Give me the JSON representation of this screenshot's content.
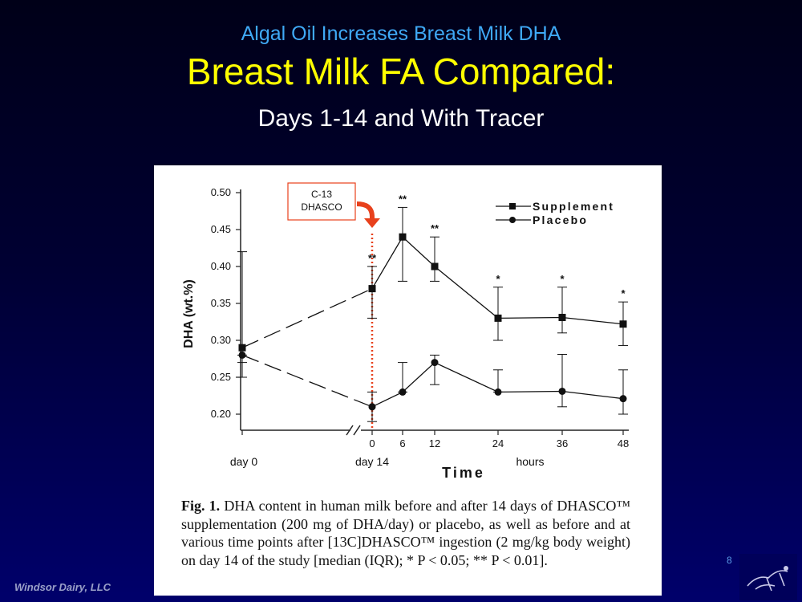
{
  "slide": {
    "kicker": "Algal Oil Increases Breast Milk DHA",
    "title": "Breast Milk FA Compared:",
    "subtitle": "Days 1-14 and With Tracer",
    "footer": "Windsor Dairy, LLC",
    "page_number": "8"
  },
  "figure": {
    "caption_lead": "Fig. 1.",
    "caption_text": "DHA content in human milk before and after 14 days of DHASCO™ supplementation (200 mg of DHA/day) or placebo, as well as before and at various time points after [13C]DHASCO™ ingestion (2 mg/kg body weight) on day 14 of the study [median (IQR); * P < 0.05; ** P < 0.01].",
    "callout_line1": "C-13",
    "callout_line2": "DHASCO",
    "x_group_labels": [
      "day 0",
      "day 14",
      "hours"
    ]
  },
  "colors": {
    "accent_title": "#ffff00",
    "accent_kicker": "#3fa9f5",
    "marker_line": "#e8411c"
  },
  "chart_data": {
    "type": "line",
    "title": "",
    "xlabel": "Time",
    "ylabel": "DHA (wt.%)",
    "ylim": [
      0.2,
      0.5
    ],
    "yticks": [
      "0.20",
      "0.25",
      "0.30",
      "0.35",
      "0.40",
      "0.45",
      "0.50"
    ],
    "categories": [
      "day 0",
      "0",
      "6",
      "12",
      "24",
      "36",
      "48"
    ],
    "legend_position": "top-right",
    "series": [
      {
        "name": "Supplement",
        "marker": "square",
        "values": [
          0.29,
          0.37,
          0.44,
          0.4,
          0.33,
          0.331,
          0.322
        ],
        "err_low": [
          0.27,
          0.33,
          0.38,
          0.38,
          0.3,
          0.31,
          0.293
        ],
        "err_high": [
          0.42,
          0.4,
          0.48,
          0.44,
          0.372,
          0.372,
          0.352
        ],
        "significance": [
          "",
          "**",
          "**",
          "**",
          "*",
          "*",
          "*"
        ]
      },
      {
        "name": "Placebo",
        "marker": "circle",
        "values": [
          0.28,
          0.21,
          0.23,
          0.27,
          0.23,
          0.231,
          0.221
        ],
        "err_low": [
          0.25,
          0.19,
          0.23,
          0.24,
          0.23,
          0.21,
          0.2
        ],
        "err_high": [
          0.28,
          0.23,
          0.27,
          0.28,
          0.26,
          0.281,
          0.26
        ],
        "significance": [
          "",
          "",
          "",
          "",
          "",
          "",
          ""
        ]
      }
    ]
  }
}
